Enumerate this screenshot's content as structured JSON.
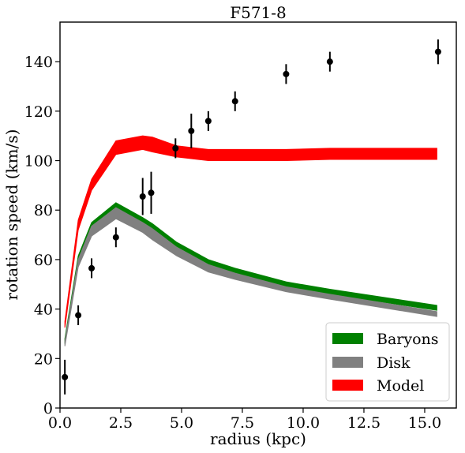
{
  "chart_data": {
    "type": "line",
    "title": "F571-8",
    "xlabel": "radius (kpc)",
    "ylabel": "rotation speed (km/s)",
    "xlim": [
      0,
      16.3
    ],
    "ylim": [
      0,
      156
    ],
    "xticks": [
      0.0,
      2.5,
      5.0,
      7.5,
      10.0,
      12.5,
      15.0
    ],
    "xtick_labels": [
      "0.0",
      "2.5",
      "5.0",
      "7.5",
      "10.0",
      "12.5",
      "15.0"
    ],
    "yticks": [
      0,
      20,
      40,
      60,
      80,
      100,
      120,
      140
    ],
    "ytick_labels": [
      "0",
      "20",
      "40",
      "60",
      "80",
      "100",
      "120",
      "140"
    ],
    "grid": false,
    "legend_position": "bottom-right",
    "bands": [
      {
        "name": "Baryons",
        "color": "#008000",
        "x": [
          0.2,
          0.75,
          1.3,
          2.3,
          3.4,
          3.8,
          4.8,
          6.1,
          7.2,
          9.3,
          11.1,
          15.5
        ],
        "lower": [
          26,
          58.5,
          71,
          78.5,
          73,
          70,
          63.5,
          57,
          54,
          49,
          46,
          39.5
        ],
        "upper": [
          28,
          61.5,
          75,
          83,
          77,
          74.5,
          67,
          60,
          56.5,
          51,
          48,
          41.5
        ]
      },
      {
        "name": "Disk",
        "color": "#808080",
        "x": [
          0.2,
          0.75,
          1.3,
          2.3,
          3.4,
          3.8,
          4.8,
          6.1,
          7.2,
          9.3,
          11.1,
          15.5
        ],
        "lower": [
          25,
          57,
          69.5,
          76.5,
          71,
          68,
          61.5,
          55,
          52,
          47,
          44,
          37
        ],
        "upper": [
          27,
          60,
          73.5,
          81,
          75,
          72.5,
          65,
          58,
          54.5,
          49,
          46,
          39
        ]
      },
      {
        "name": "Model",
        "color": "#ff0000",
        "x": [
          0.2,
          0.75,
          1.3,
          2.3,
          3.4,
          3.8,
          4.8,
          6.1,
          7.2,
          9.3,
          11.1,
          15.5
        ],
        "lower": [
          32.5,
          72,
          88,
          102.5,
          104.5,
          103.5,
          101.5,
          100,
          100,
          100,
          100.5,
          100.5
        ],
        "upper": [
          35,
          76,
          92.5,
          108,
          110,
          109.5,
          106,
          104.5,
          104.5,
          104.5,
          105,
          105
        ]
      }
    ],
    "observations": {
      "name": "data",
      "color": "#000000",
      "points": [
        {
          "x": 0.2,
          "y": 12.5,
          "err": 7
        },
        {
          "x": 0.75,
          "y": 37.5,
          "err": 4
        },
        {
          "x": 1.3,
          "y": 56.5,
          "err": 4
        },
        {
          "x": 2.3,
          "y": 69,
          "err": 4
        },
        {
          "x": 3.4,
          "y": 85.5,
          "err": 7.5
        },
        {
          "x": 3.75,
          "y": 87,
          "err": 8.5
        },
        {
          "x": 4.75,
          "y": 105,
          "err": 4
        },
        {
          "x": 5.4,
          "y": 112,
          "err": 7
        },
        {
          "x": 6.1,
          "y": 116,
          "err": 4
        },
        {
          "x": 7.2,
          "y": 124,
          "err": 4
        },
        {
          "x": 9.3,
          "y": 135,
          "err": 4
        },
        {
          "x": 11.1,
          "y": 140,
          "err": 4
        },
        {
          "x": 15.55,
          "y": 144,
          "err": 5
        }
      ]
    },
    "legend": [
      "Baryons",
      "Disk",
      "Model"
    ]
  }
}
